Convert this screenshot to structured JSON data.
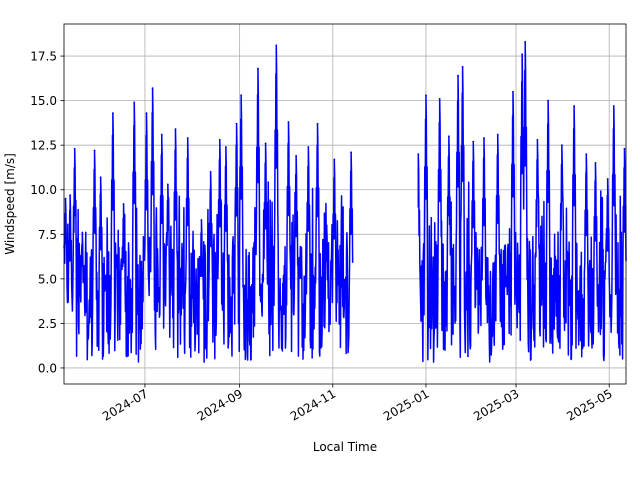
{
  "chart_data": {
    "type": "line",
    "xlabel": "Local Time",
    "ylabel": "Windspeed [m/s]",
    "xlim": [
      "2024-05-09",
      "2025-05-12"
    ],
    "ylim": [
      -0.9,
      19.3
    ],
    "x_ticks": [
      "2024-07",
      "2024-09",
      "2024-11",
      "2025-01",
      "2025-03",
      "2025-05"
    ],
    "y_ticks": [
      "0.0",
      "2.5",
      "5.0",
      "7.5",
      "10.0",
      "12.5",
      "15.0",
      "17.5"
    ],
    "grid": true,
    "series": [
      {
        "color": "#0000ff",
        "segments": [
          {
            "start": "2024-05-09",
            "end": "2024-11-14",
            "peaks": [
              [
                "2024-05-10",
                9.5
              ],
              [
                "2024-05-13",
                9.7
              ],
              [
                "2024-05-16",
                12.3
              ],
              [
                "2024-05-21",
                7.6
              ],
              [
                "2024-05-29",
                12.2
              ],
              [
                "2024-06-02",
                10.7
              ],
              [
                "2024-06-10",
                14.3
              ],
              [
                "2024-06-17",
                9.2
              ],
              [
                "2024-06-24",
                14.9
              ],
              [
                "2024-07-02",
                14.3
              ],
              [
                "2024-07-06",
                15.7
              ],
              [
                "2024-07-12",
                13.1
              ],
              [
                "2024-07-16",
                10.3
              ],
              [
                "2024-07-21",
                13.4
              ],
              [
                "2024-07-29",
                12.9
              ],
              [
                "2024-08-07",
                8.3
              ],
              [
                "2024-08-13",
                11.0
              ],
              [
                "2024-08-19",
                12.8
              ],
              [
                "2024-08-23",
                12.4
              ],
              [
                "2024-08-30",
                13.7
              ],
              [
                "2024-09-02",
                15.3
              ],
              [
                "2024-09-13",
                16.8
              ],
              [
                "2024-09-18",
                12.6
              ],
              [
                "2024-09-25",
                18.1
              ],
              [
                "2024-10-03",
                13.8
              ],
              [
                "2024-10-08",
                11.9
              ],
              [
                "2024-10-16",
                12.4
              ],
              [
                "2024-10-22",
                13.7
              ],
              [
                "2024-10-28",
                8.0
              ],
              [
                "2024-11-02",
                11.7
              ],
              [
                "2024-11-13",
                12.1
              ]
            ]
          },
          {
            "start": "2024-12-27",
            "end": "2025-05-12",
            "peaks": [
              [
                "2024-12-27",
                12.0
              ],
              [
                "2025-01-01",
                15.3
              ],
              [
                "2025-01-10",
                15.1
              ],
              [
                "2025-01-16",
                13.0
              ],
              [
                "2025-01-22",
                16.4
              ],
              [
                "2025-01-25",
                16.9
              ],
              [
                "2025-02-01",
                12.7
              ],
              [
                "2025-02-08",
                12.9
              ],
              [
                "2025-02-17",
                13.1
              ],
              [
                "2025-02-27",
                15.5
              ],
              [
                "2025-03-05",
                17.6
              ],
              [
                "2025-03-07",
                18.3
              ],
              [
                "2025-03-15",
                12.8
              ],
              [
                "2025-03-22",
                15.0
              ],
              [
                "2025-03-31",
                12.5
              ],
              [
                "2025-04-08",
                14.7
              ],
              [
                "2025-04-16",
                12.0
              ],
              [
                "2025-04-22",
                11.5
              ],
              [
                "2025-04-30",
                10.6
              ],
              [
                "2025-05-04",
                14.7
              ],
              [
                "2025-05-11",
                12.3
              ]
            ]
          }
        ]
      }
    ]
  }
}
